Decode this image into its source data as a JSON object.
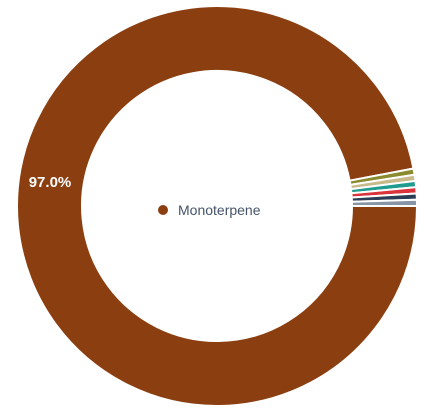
{
  "chart_data": {
    "type": "pie",
    "variant": "donut",
    "legend_position": "center",
    "slices": [
      {
        "label": "Monoterpene",
        "value": 97.0,
        "color": "#8b3e10",
        "shown_label": "97.0%"
      },
      {
        "label": "",
        "value": 0.5,
        "color": "#8a8a2e"
      },
      {
        "label": "",
        "value": 0.5,
        "color": "#c8b98a"
      },
      {
        "label": "",
        "value": 0.5,
        "color": "#1f9c8f"
      },
      {
        "label": "",
        "value": 0.5,
        "color": "#d9333b"
      },
      {
        "label": "",
        "value": 0.5,
        "color": "#2c3e55"
      },
      {
        "label": "",
        "value": 0.5,
        "color": "#8795a6"
      }
    ],
    "legend": {
      "label": "Monoterpene",
      "color": "#8b3e10"
    }
  }
}
